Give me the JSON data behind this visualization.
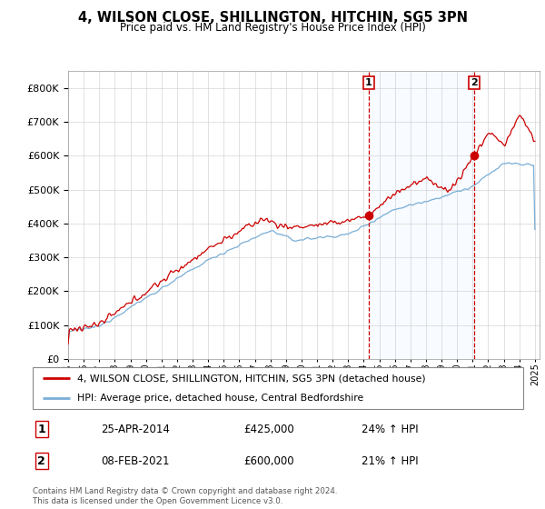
{
  "title": "4, WILSON CLOSE, SHILLINGTON, HITCHIN, SG5 3PN",
  "subtitle": "Price paid vs. HM Land Registry's House Price Index (HPI)",
  "legend_label_red": "4, WILSON CLOSE, SHILLINGTON, HITCHIN, SG5 3PN (detached house)",
  "legend_label_blue": "HPI: Average price, detached house, Central Bedfordshire",
  "footnote": "Contains HM Land Registry data © Crown copyright and database right 2024.\nThis data is licensed under the Open Government Licence v3.0.",
  "transaction1_date": "25-APR-2014",
  "transaction1_price": "£425,000",
  "transaction1_hpi": "24% ↑ HPI",
  "transaction2_date": "08-FEB-2021",
  "transaction2_price": "£600,000",
  "transaction2_hpi": "21% ↑ HPI",
  "red_color": "#cc0000",
  "blue_color": "#7aaed6",
  "vline_color": "#cc0000",
  "shade_color": "#ddeeff",
  "ylim": [
    0,
    850000
  ],
  "ylabel_ticks": [
    0,
    100000,
    200000,
    300000,
    400000,
    500000,
    600000,
    700000,
    800000
  ],
  "transaction1_year": 2014.32,
  "transaction2_year": 2021.1,
  "t1_price": 425000,
  "t2_price": 600000
}
